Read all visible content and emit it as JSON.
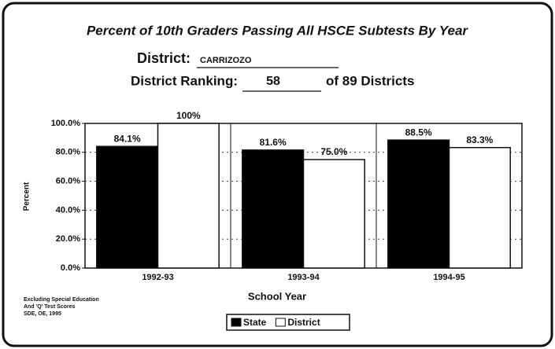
{
  "chart_data": {
    "type": "bar",
    "title": "Percent of 10th Graders Passing All HSCE Subtests By Year",
    "district_label": "District:",
    "district": "CARRIZOZO",
    "ranking_label": "District Ranking:",
    "ranking": "58",
    "ranking_suffix": "of 89 Districts",
    "x_label": "School Year",
    "y_label": "Percent",
    "footnote": [
      "Excluding Special Education",
      "And 'Q' Test Scores",
      "SDE, OE, 1995"
    ],
    "categories": [
      "1992-93",
      "1993-94",
      "1994-95"
    ],
    "series": [
      {
        "name": "State",
        "color": "#000000",
        "values": [
          84.1,
          81.6,
          88.5
        ],
        "value_labels": [
          "84.1%",
          "81.6%",
          "88.5%"
        ]
      },
      {
        "name": "District",
        "color": "#ffffff",
        "values": [
          100,
          75.0,
          83.3
        ],
        "value_labels": [
          "100%",
          "75.0%",
          "83.3%"
        ]
      }
    ],
    "ylim": [
      0,
      100
    ],
    "yticks": [
      {
        "value": 0,
        "label": "0.0%"
      },
      {
        "value": 20,
        "label": "20.0%"
      },
      {
        "value": 40,
        "label": "40.0%"
      },
      {
        "value": 60,
        "label": "60.0%"
      },
      {
        "value": 80,
        "label": "80.0%"
      },
      {
        "value": 100,
        "label": "100.0%"
      }
    ],
    "grid": true,
    "legend": "bottom"
  }
}
